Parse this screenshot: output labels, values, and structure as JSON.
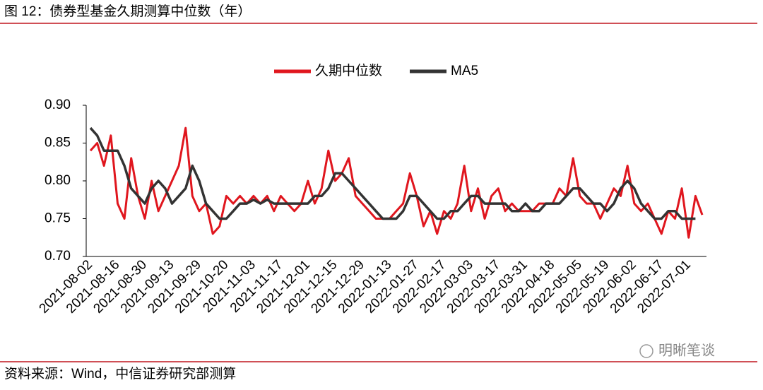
{
  "header": {
    "title": "图 12：债券型基金久期测算中位数（年）"
  },
  "chart_data": {
    "type": "line",
    "categories": [
      "2021-08-02",
      null,
      null,
      null,
      "2021-08-16",
      null,
      null,
      null,
      "2021-08-30",
      null,
      null,
      null,
      "2021-09-13",
      null,
      null,
      null,
      "2021-09-29",
      null,
      null,
      null,
      "2021-10-20",
      null,
      null,
      null,
      "2021-11-03",
      null,
      null,
      null,
      "2021-11-17",
      null,
      null,
      null,
      "2021-12-01",
      null,
      null,
      null,
      "2021-12-15",
      null,
      null,
      null,
      "2021-12-29",
      null,
      null,
      null,
      "2022-01-13",
      null,
      null,
      null,
      "2022-01-27",
      null,
      null,
      null,
      "2022-02-17",
      null,
      null,
      null,
      "2022-03-03",
      null,
      null,
      null,
      "2022-03-17",
      null,
      null,
      null,
      "2022-03-31",
      null,
      null,
      null,
      "2022-04-18",
      null,
      null,
      null,
      "2022-05-05",
      null,
      null,
      null,
      "2022-05-19",
      null,
      null,
      null,
      "2022-06-02",
      null,
      null,
      null,
      "2022-06-17",
      null,
      null,
      null,
      "2022-07-01",
      null,
      null
    ],
    "series": [
      {
        "name": "久期中位数",
        "color": "#e0161e",
        "values": [
          0.84,
          0.85,
          0.82,
          0.86,
          0.77,
          0.75,
          0.83,
          0.78,
          0.75,
          0.8,
          0.76,
          0.78,
          0.8,
          0.82,
          0.87,
          0.78,
          0.76,
          0.77,
          0.73,
          0.74,
          0.78,
          0.77,
          0.78,
          0.77,
          0.78,
          0.77,
          0.78,
          0.76,
          0.78,
          0.77,
          0.76,
          0.77,
          0.8,
          0.77,
          0.79,
          0.84,
          0.8,
          0.81,
          0.83,
          0.78,
          0.77,
          0.76,
          0.75,
          0.75,
          0.75,
          0.76,
          0.77,
          0.81,
          0.78,
          0.74,
          0.76,
          0.73,
          0.76,
          0.75,
          0.77,
          0.82,
          0.76,
          0.79,
          0.75,
          0.78,
          0.79,
          0.76,
          0.77,
          0.76,
          0.76,
          0.76,
          0.77,
          0.77,
          0.77,
          0.79,
          0.78,
          0.83,
          0.78,
          0.77,
          0.77,
          0.75,
          0.77,
          0.79,
          0.78,
          0.82,
          0.77,
          0.76,
          0.77,
          0.75,
          0.73,
          0.76,
          0.75,
          0.79,
          0.725,
          0.78,
          0.755
        ]
      },
      {
        "name": "MA5",
        "color": "#333333",
        "values": [
          0.87,
          0.86,
          0.84,
          0.84,
          0.84,
          0.82,
          0.79,
          0.78,
          0.77,
          0.79,
          0.8,
          0.79,
          0.77,
          0.78,
          0.79,
          0.82,
          0.8,
          0.77,
          0.76,
          0.75,
          0.75,
          0.76,
          0.77,
          0.77,
          0.775,
          0.77,
          0.775,
          0.77,
          0.77,
          0.77,
          0.77,
          0.77,
          0.77,
          0.78,
          0.78,
          0.79,
          0.81,
          0.81,
          0.8,
          0.79,
          0.78,
          0.77,
          0.76,
          0.75,
          0.75,
          0.75,
          0.76,
          0.78,
          0.78,
          0.77,
          0.76,
          0.75,
          0.75,
          0.76,
          0.76,
          0.77,
          0.78,
          0.78,
          0.77,
          0.77,
          0.77,
          0.77,
          0.76,
          0.76,
          0.77,
          0.76,
          0.76,
          0.77,
          0.77,
          0.77,
          0.78,
          0.79,
          0.79,
          0.78,
          0.77,
          0.77,
          0.76,
          0.77,
          0.79,
          0.8,
          0.79,
          0.77,
          0.76,
          0.75,
          0.75,
          0.76,
          0.76,
          0.75,
          0.75,
          0.75,
          null
        ]
      }
    ],
    "ylim": [
      0.7,
      0.9
    ],
    "yticks": [
      {
        "value": 0.7,
        "label": "0.70"
      },
      {
        "value": 0.75,
        "label": "0.75"
      },
      {
        "value": 0.8,
        "label": "0.80"
      },
      {
        "value": 0.85,
        "label": "0.85"
      },
      {
        "value": 0.9,
        "label": "0.90"
      }
    ],
    "legend": "top"
  },
  "footer": {
    "source": "资料来源：Wind，中信证券研究部测算",
    "watermark": "明晰笔谈"
  }
}
